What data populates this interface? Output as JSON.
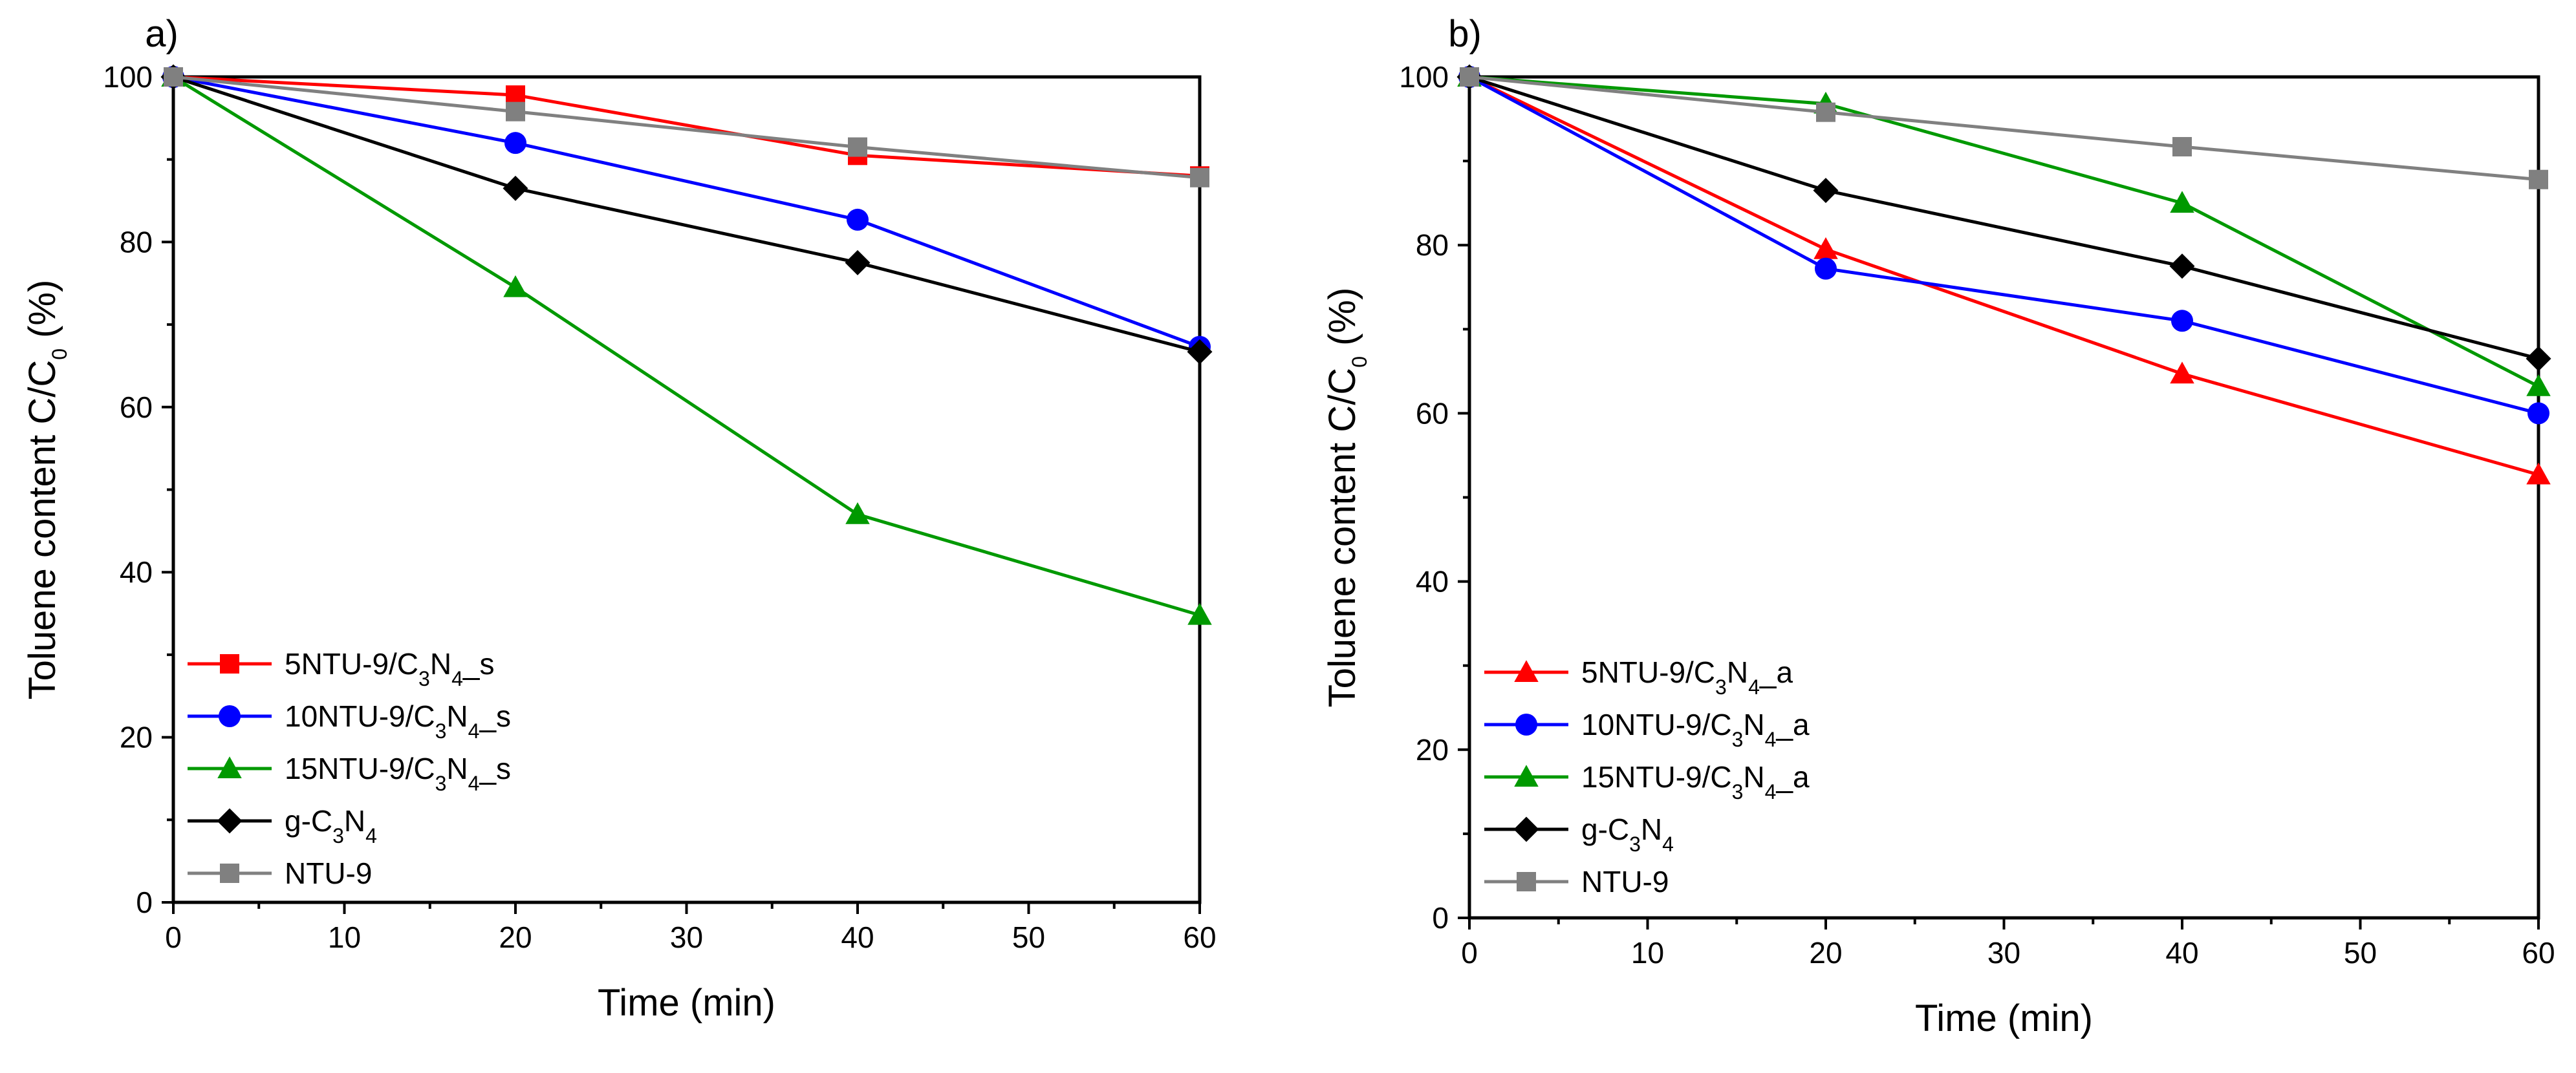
{
  "chart_data": [
    {
      "type": "line",
      "panel_label": "a)",
      "xlabel": "Time (min)",
      "ylabel": {
        "main": "Toluene content C/C",
        "sub": "0",
        "suffix": " (%)"
      },
      "xlim": [
        0,
        60
      ],
      "ylim": [
        0,
        100
      ],
      "xticks": [
        0,
        10,
        20,
        30,
        40,
        50,
        60
      ],
      "yticks": [
        0,
        20,
        40,
        60,
        80,
        100
      ],
      "legend_position": "lower-left",
      "series": [
        {
          "name": "5NTU-9/C3N4_s",
          "legend": [
            [
              "5NTU-9/C",
              ""
            ],
            [
              "3",
              "sub"
            ],
            [
              "N",
              ""
            ],
            [
              "4",
              "sub"
            ],
            [
              "_s",
              ""
            ]
          ],
          "color": "#ff0000",
          "marker": "square",
          "x": [
            0,
            20,
            40,
            60
          ],
          "y": [
            100,
            97.8,
            90.5,
            88
          ]
        },
        {
          "name": "10NTU-9/C3N4_s",
          "legend": [
            [
              "10NTU-9/C",
              ""
            ],
            [
              "3",
              "sub"
            ],
            [
              "N",
              ""
            ],
            [
              "4",
              "sub"
            ],
            [
              "_s",
              ""
            ]
          ],
          "color": "#0000ff",
          "marker": "circle",
          "x": [
            0,
            20,
            40,
            60
          ],
          "y": [
            100,
            92,
            82.7,
            67.3
          ]
        },
        {
          "name": "15NTU-9/C3N4_s",
          "legend": [
            [
              "15NTU-9/C",
              ""
            ],
            [
              "3",
              "sub"
            ],
            [
              "N",
              ""
            ],
            [
              "4",
              "sub"
            ],
            [
              "_s",
              ""
            ]
          ],
          "color": "#009900",
          "marker": "triangle",
          "x": [
            0,
            20,
            40,
            60
          ],
          "y": [
            100,
            74.5,
            47,
            34.8
          ]
        },
        {
          "name": "g-C3N4",
          "legend": [
            [
              "g-C",
              ""
            ],
            [
              "3",
              "sub"
            ],
            [
              "N",
              ""
            ],
            [
              "4",
              "sub"
            ]
          ],
          "color": "#000000",
          "marker": "diamond",
          "x": [
            0,
            20,
            40,
            60
          ],
          "y": [
            100,
            86.5,
            77.5,
            66.7
          ]
        },
        {
          "name": "NTU-9",
          "legend": [
            [
              "NTU-9",
              ""
            ]
          ],
          "color": "#808080",
          "marker": "square",
          "x": [
            0,
            20,
            40,
            60
          ],
          "y": [
            100,
            95.8,
            91.5,
            87.8
          ]
        }
      ]
    },
    {
      "type": "line",
      "panel_label": "b)",
      "xlabel": "Time (min)",
      "ylabel": {
        "main": "Toluene content C/C",
        "sub": "0",
        "suffix": " (%)"
      },
      "xlim": [
        0,
        60
      ],
      "ylim": [
        0,
        100
      ],
      "xticks": [
        0,
        10,
        20,
        30,
        40,
        50,
        60
      ],
      "yticks": [
        0,
        20,
        40,
        60,
        80,
        100
      ],
      "legend_position": "lower-left",
      "series": [
        {
          "name": "5NTU-9/C3N4_a",
          "legend": [
            [
              "5NTU-9/C",
              ""
            ],
            [
              "3",
              "sub"
            ],
            [
              "N",
              ""
            ],
            [
              "4",
              "sub"
            ],
            [
              "_a",
              ""
            ]
          ],
          "color": "#ff0000",
          "marker": "triangle",
          "x": [
            0,
            20,
            40,
            60
          ],
          "y": [
            100,
            79.5,
            64.7,
            52.7
          ]
        },
        {
          "name": "10NTU-9/C3N4_a",
          "legend": [
            [
              "10NTU-9/C",
              ""
            ],
            [
              "3",
              "sub"
            ],
            [
              "N",
              ""
            ],
            [
              "4",
              "sub"
            ],
            [
              "_a",
              ""
            ]
          ],
          "color": "#0000ff",
          "marker": "circle",
          "x": [
            0,
            20,
            40,
            60
          ],
          "y": [
            100,
            77.2,
            71,
            60
          ]
        },
        {
          "name": "15NTU-9/C3N4_a",
          "legend": [
            [
              "15NTU-9/C",
              ""
            ],
            [
              "3",
              "sub"
            ],
            [
              "N",
              ""
            ],
            [
              "4",
              "sub"
            ],
            [
              "_a",
              ""
            ]
          ],
          "color": "#009900",
          "marker": "triangle",
          "x": [
            0,
            20,
            40,
            60
          ],
          "y": [
            100,
            96.8,
            85,
            63.2
          ]
        },
        {
          "name": "g-C3N4",
          "legend": [
            [
              "g-C",
              ""
            ],
            [
              "3",
              "sub"
            ],
            [
              "N",
              ""
            ],
            [
              "4",
              "sub"
            ]
          ],
          "color": "#000000",
          "marker": "diamond",
          "x": [
            0,
            20,
            40,
            60
          ],
          "y": [
            100,
            86.5,
            77.5,
            66.5
          ]
        },
        {
          "name": "NTU-9",
          "legend": [
            [
              "NTU-9",
              ""
            ]
          ],
          "color": "#808080",
          "marker": "square",
          "x": [
            0,
            20,
            40,
            60
          ],
          "y": [
            100,
            95.8,
            91.7,
            87.8
          ]
        }
      ]
    }
  ]
}
